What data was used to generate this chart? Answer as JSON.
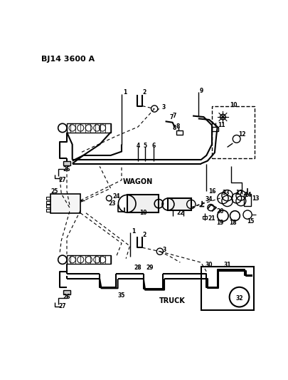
{
  "title": "BJ14 3600 A",
  "bg_color": "#ffffff",
  "line_color": "#000000",
  "wagon_label": "WAGON",
  "truck_label": "TRUCK",
  "fig_width": 4.05,
  "fig_height": 5.33,
  "dpi": 100
}
